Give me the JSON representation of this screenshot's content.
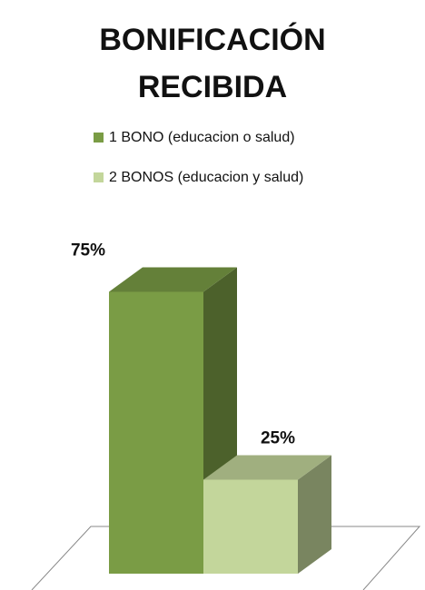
{
  "chart_data": {
    "type": "bar",
    "title": "BONIFICACIÓN RECIBIDA",
    "series": [
      {
        "name": "1 BONO (educacion o salud)",
        "color": "#7a9c45",
        "values": [
          75
        ],
        "value_labels": [
          "75%"
        ]
      },
      {
        "name": "2 BONOS (educacion y salud)",
        "color": "#c3d69b",
        "values": [
          25
        ],
        "value_labels": [
          "25%"
        ]
      }
    ]
  }
}
